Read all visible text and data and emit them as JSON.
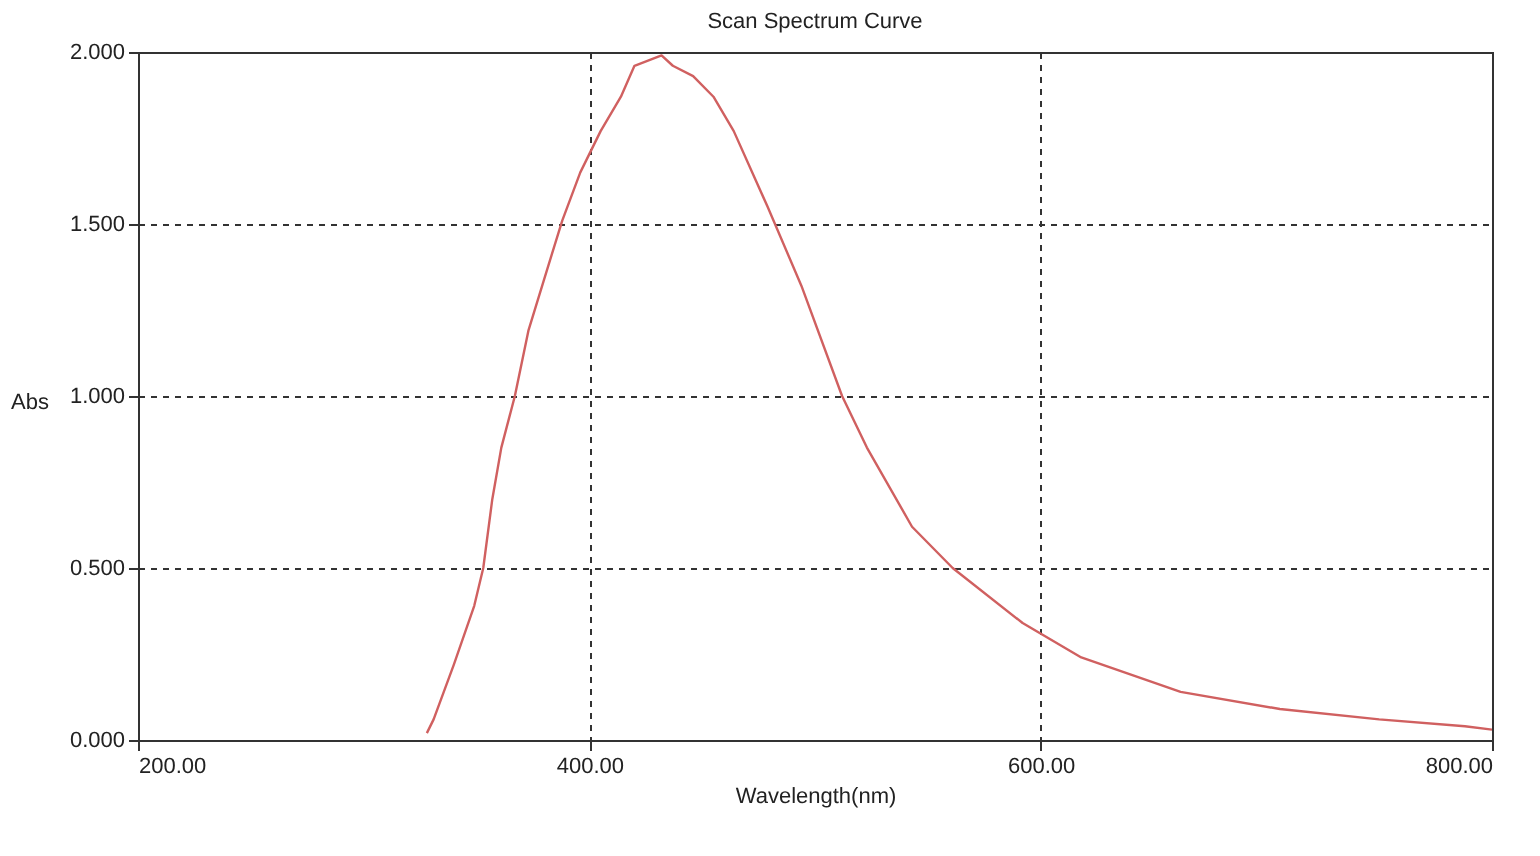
{
  "chart_data": {
    "type": "line",
    "title": "Scan Spectrum Curve",
    "xlabel": "Wavelength(nm)",
    "ylabel": "Abs",
    "x": [
      328,
      331,
      340,
      349,
      353,
      357,
      361,
      367,
      373,
      380,
      388,
      396,
      405,
      414,
      420,
      432,
      437,
      446,
      455,
      464,
      479,
      494,
      512,
      523,
      543,
      561,
      592,
      618,
      662,
      706,
      750,
      788,
      800
    ],
    "series": [
      {
        "color": "#d06060",
        "values": [
          0.02,
          0.06,
          0.22,
          0.39,
          0.5,
          0.7,
          0.85,
          1.0,
          1.19,
          1.34,
          1.51,
          1.65,
          1.77,
          1.87,
          1.96,
          1.99,
          1.96,
          1.93,
          1.87,
          1.77,
          1.55,
          1.32,
          1.0,
          0.85,
          0.62,
          0.5,
          0.34,
          0.24,
          0.14,
          0.09,
          0.06,
          0.04,
          0.03
        ]
      }
    ],
    "xlim": [
      200,
      800
    ],
    "xticks": [
      {
        "value": 200,
        "label": "200.00"
      },
      {
        "value": 400,
        "label": "400.00"
      },
      {
        "value": 600,
        "label": "600.00"
      },
      {
        "value": 800,
        "label": "800.00"
      }
    ],
    "ylim": [
      0,
      2
    ],
    "yticks": [
      {
        "value": 0,
        "label": "0.000"
      },
      {
        "value": 0.5,
        "label": "0.500"
      },
      {
        "value": 1,
        "label": "1.000"
      },
      {
        "value": 1.5,
        "label": "1.500"
      },
      {
        "value": 2,
        "label": "2.000"
      }
    ],
    "grid": true,
    "line_style": "solid",
    "marker": "none"
  }
}
